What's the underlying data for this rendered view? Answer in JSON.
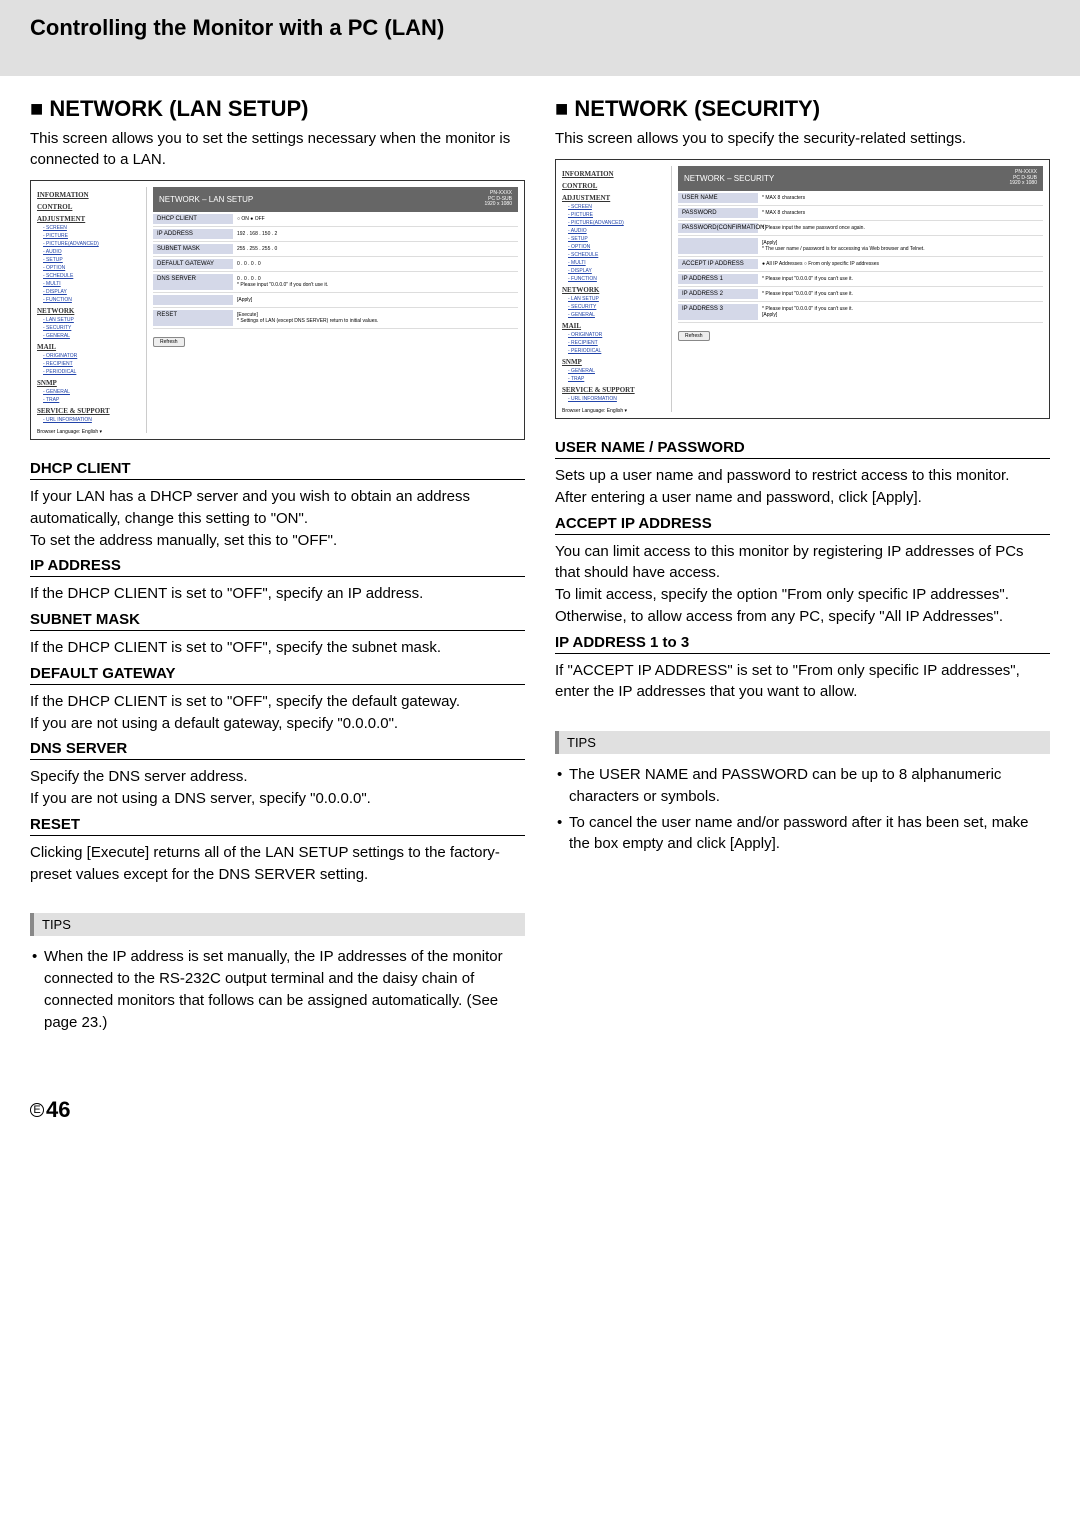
{
  "header": {
    "title": "Controlling the Monitor with a PC (LAN)"
  },
  "left": {
    "heading": "NETWORK (LAN SETUP)",
    "intro": "This screen allows you to set the settings necessary when the monitor is connected to a LAN.",
    "screenshot": {
      "panelTitle": "NETWORK – LAN SETUP",
      "deviceLabel1": "PN-XXXX",
      "deviceLabel2": "PC D-SUB",
      "deviceLabel3": "1920 x 1080",
      "sidebar": {
        "groups": [
          {
            "name": "INFORMATION",
            "items": []
          },
          {
            "name": "CONTROL",
            "items": []
          },
          {
            "name": "ADJUSTMENT",
            "items": [
              "SCREEN",
              "PICTURE",
              "PICTURE(ADVANCED)",
              "AUDIO",
              "SETUP",
              "OPTION",
              "SCHEDULE",
              "MULTI",
              "DISPLAY",
              "FUNCTION"
            ]
          },
          {
            "name": "NETWORK",
            "items": [
              "LAN SETUP",
              "SECURITY",
              "GENERAL"
            ]
          },
          {
            "name": "MAIL",
            "items": [
              "ORIGINATOR",
              "RECIPIENT",
              "PERIODICAL"
            ]
          },
          {
            "name": "SNMP",
            "items": [
              "GENERAL",
              "TRAP"
            ]
          },
          {
            "name": "SERVICE & SUPPORT",
            "items": [
              "URL INFORMATION"
            ]
          }
        ],
        "languageLabel": "Browser Language: English ▾"
      },
      "rows": [
        {
          "label": "DHCP CLIENT",
          "value": "○ ON  ● OFF"
        },
        {
          "label": "IP ADDRESS",
          "value": "192 . 168 . 150 . 2"
        },
        {
          "label": "SUBNET MASK",
          "value": "255 . 255 . 255 . 0"
        },
        {
          "label": "DEFAULT GATEWAY",
          "value": "0 . 0 . 0 . 0"
        },
        {
          "label": "DNS SERVER",
          "value": "0 . 0 . 0 . 0\n* Please input \"0.0.0.0\" if you don't use it."
        },
        {
          "label": "",
          "value": "[Apply]"
        },
        {
          "label": "RESET",
          "value": "[Execute]\n* Settings of LAN (except DNS SERVER) return to initial values."
        }
      ],
      "refreshBtn": "Refresh"
    },
    "subsections": [
      {
        "title": "DHCP CLIENT",
        "text": "If your LAN has a DHCP server and you wish to obtain an address automatically, change this setting to \"ON\".\nTo set the address manually, set this to \"OFF\"."
      },
      {
        "title": "IP ADDRESS",
        "text": "If the DHCP CLIENT is set to \"OFF\", specify an IP address."
      },
      {
        "title": "SUBNET MASK",
        "text": "If the DHCP CLIENT is set to \"OFF\", specify the subnet mask."
      },
      {
        "title": "DEFAULT GATEWAY",
        "text": "If the DHCP CLIENT is set to \"OFF\", specify the default gateway.\nIf you are not using a default gateway, specify \"0.0.0.0\"."
      },
      {
        "title": "DNS SERVER",
        "text": "Specify the DNS server address.\nIf you are not using a DNS server, specify \"0.0.0.0\"."
      },
      {
        "title": "RESET",
        "text": "Clicking [Execute] returns all of the LAN SETUP settings to the factory-preset values except for the DNS SERVER setting."
      }
    ],
    "tips": {
      "header": "TIPS",
      "items": [
        "When the IP address is set manually, the IP addresses of the monitor connected to the RS-232C output terminal and the daisy chain of connected monitors that follows can be assigned automatically. (See page 23.)"
      ]
    }
  },
  "right": {
    "heading": "NETWORK (SECURITY)",
    "intro": "This screen allows you to specify the security-related settings.",
    "screenshot": {
      "panelTitle": "NETWORK – SECURITY",
      "deviceLabel1": "PN-XXXX",
      "deviceLabel2": "PC D-SUB",
      "deviceLabel3": "1920 x 1080",
      "sidebar": {
        "groups": [
          {
            "name": "INFORMATION",
            "items": []
          },
          {
            "name": "CONTROL",
            "items": []
          },
          {
            "name": "ADJUSTMENT",
            "items": [
              "SCREEN",
              "PICTURE",
              "PICTURE(ADVANCED)",
              "AUDIO",
              "SETUP",
              "OPTION",
              "SCHEDULE",
              "MULTI",
              "DISPLAY",
              "FUNCTION"
            ]
          },
          {
            "name": "NETWORK",
            "items": [
              "LAN SETUP",
              "SECURITY",
              "GENERAL"
            ]
          },
          {
            "name": "MAIL",
            "items": [
              "ORIGINATOR",
              "RECIPIENT",
              "PERIODICAL"
            ]
          },
          {
            "name": "SNMP",
            "items": [
              "GENERAL",
              "TRAP"
            ]
          },
          {
            "name": "SERVICE & SUPPORT",
            "items": [
              "URL INFORMATION"
            ]
          }
        ],
        "languageLabel": "Browser Language: English ▾"
      },
      "rows": [
        {
          "label": "USER NAME",
          "value": "* MAX 8 characters"
        },
        {
          "label": "PASSWORD",
          "value": "* MAX 8 characters"
        },
        {
          "label": "PASSWORD(CONFIRMATION)",
          "value": "* Please input the same password once again."
        },
        {
          "label": "",
          "value": "[Apply]\n* The user name / password is for accessing via Web browser and Telnet."
        },
        {
          "label": "ACCEPT IP ADDRESS",
          "value": "● All IP Addresses  ○ From only specific IP addresses"
        },
        {
          "label": "IP ADDRESS 1",
          "value": "* Please input \"0.0.0.0\" if you can't use it."
        },
        {
          "label": "IP ADDRESS 2",
          "value": "* Please input \"0.0.0.0\" if you can't use it."
        },
        {
          "label": "IP ADDRESS 3",
          "value": "* Please input \"0.0.0.0\" if you can't use it.\n[Apply]"
        }
      ],
      "refreshBtn": "Refresh"
    },
    "subsections": [
      {
        "title": "USER NAME / PASSWORD",
        "text": "Sets up a user name and password to restrict access to this monitor.\nAfter entering a user name and password, click [Apply]."
      },
      {
        "title": "ACCEPT IP ADDRESS",
        "text": "You can limit access to this monitor by registering IP addresses of PCs that should have access.\nTo limit access, specify the option \"From only specific IP addresses\". Otherwise, to allow access from any PC, specify \"All IP Addresses\"."
      },
      {
        "title": "IP ADDRESS 1 to 3",
        "text": "If \"ACCEPT IP ADDRESS\" is set to \"From only specific IP addresses\", enter the IP addresses that you want to allow."
      }
    ],
    "tips": {
      "header": "TIPS",
      "items": [
        "The USER NAME and PASSWORD can be up to 8 alphanumeric characters or symbols.",
        "To cancel the user name and/or password after it has been set, make the box empty and click [Apply]."
      ]
    }
  },
  "footer": {
    "enumLabel": "E",
    "pageNumber": "46"
  }
}
